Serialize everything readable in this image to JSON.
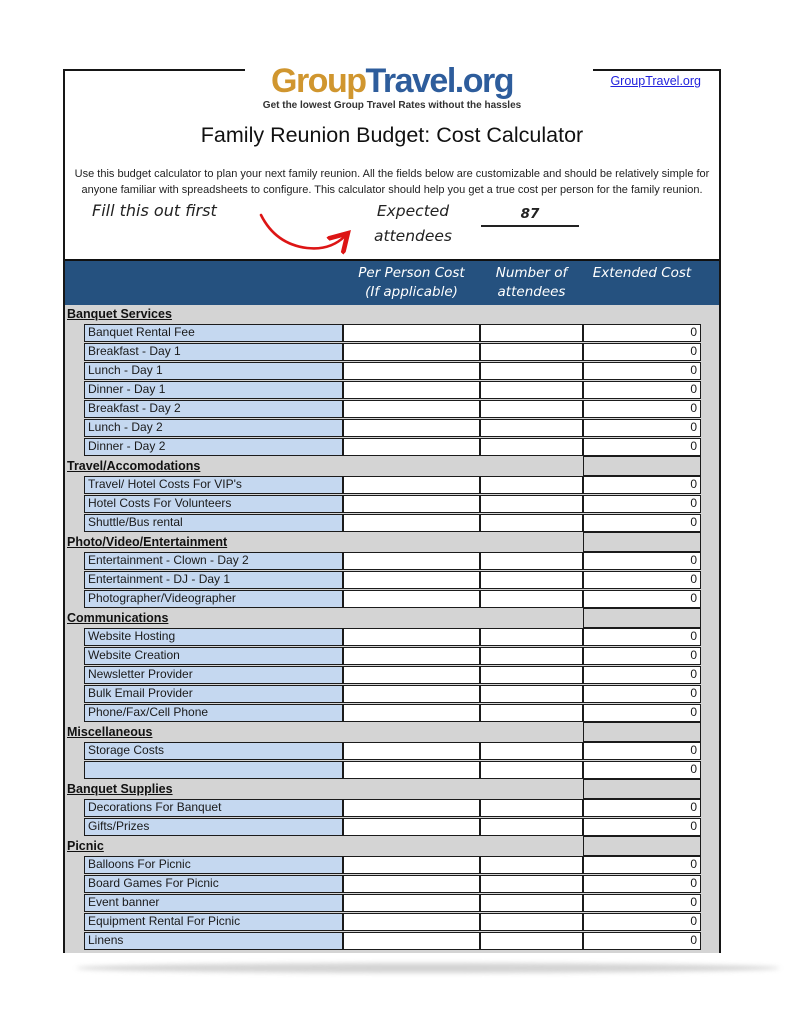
{
  "colors": {
    "logo_gold": "#D0962F",
    "logo_blue": "#2E5D9C",
    "link_blue": "#2222DD",
    "band_blue": "#25517F",
    "cell_blue": "#C5D8F0",
    "table_gray": "#D4D4D4",
    "arrow_red": "#DD1515"
  },
  "brand": {
    "logo_group": "Group",
    "logo_travel": "Travel.org",
    "tagline": "Get the lowest Group Travel Rates without the hassles",
    "link_label": "GroupTravel.org"
  },
  "header": {
    "title": "Family Reunion Budget: Cost Calculator",
    "description_line1": "Use this budget calculator to plan your next family reunion. All the fields below are customizable and should be relatively simple for",
    "description_line2": "anyone familiar with spreadsheets to configure. This calculator should help you get a true cost per person for the family reunion."
  },
  "annotation": {
    "note": "Fill this out first",
    "label_line1": "Expected",
    "label_line2": "attendees",
    "value": "87"
  },
  "table": {
    "columns": [
      {
        "line1": "Per Person Cost",
        "line2": "(If applicable)"
      },
      {
        "line1": "Number of",
        "line2": "attendees"
      },
      {
        "line1": "Extended Cost",
        "line2": ""
      }
    ],
    "sections": [
      {
        "name": "Banquet Services",
        "sum_box": false,
        "rows": [
          {
            "label": "Banquet Rental Fee",
            "per_person": "",
            "attendees": "",
            "extended": "0"
          },
          {
            "label": "Breakfast - Day 1",
            "per_person": "",
            "attendees": "",
            "extended": "0"
          },
          {
            "label": "Lunch - Day 1",
            "per_person": "",
            "attendees": "",
            "extended": "0"
          },
          {
            "label": "Dinner - Day 1",
            "per_person": "",
            "attendees": "",
            "extended": "0"
          },
          {
            "label": "Breakfast - Day 2",
            "per_person": "",
            "attendees": "",
            "extended": "0"
          },
          {
            "label": "Lunch - Day 2",
            "per_person": "",
            "attendees": "",
            "extended": "0"
          },
          {
            "label": "Dinner - Day 2",
            "per_person": "",
            "attendees": "",
            "extended": "0"
          }
        ]
      },
      {
        "name": "Travel/Accomodations",
        "sum_box": true,
        "rows": [
          {
            "label": "Travel/ Hotel Costs For VIP's",
            "per_person": "",
            "attendees": "",
            "extended": "0"
          },
          {
            "label": "Hotel Costs For Volunteers",
            "per_person": "",
            "attendees": "",
            "extended": "0"
          },
          {
            "label": "Shuttle/Bus rental",
            "per_person": "",
            "attendees": "",
            "extended": "0"
          }
        ]
      },
      {
        "name": "Photo/Video/Entertainment",
        "sum_box": true,
        "rows": [
          {
            "label": "Entertainment - Clown - Day 2",
            "per_person": "",
            "attendees": "",
            "extended": "0"
          },
          {
            "label": "Entertainment - DJ - Day 1",
            "per_person": "",
            "attendees": "",
            "extended": "0"
          },
          {
            "label": "Photographer/Videographer",
            "per_person": "",
            "attendees": "",
            "extended": "0"
          }
        ]
      },
      {
        "name": "Communications",
        "sum_box": true,
        "rows": [
          {
            "label": "Website Hosting",
            "per_person": "",
            "attendees": "",
            "extended": "0"
          },
          {
            "label": "Website Creation",
            "per_person": "",
            "attendees": "",
            "extended": "0"
          },
          {
            "label": "Newsletter Provider",
            "per_person": "",
            "attendees": "",
            "extended": "0"
          },
          {
            "label": "Bulk Email Provider",
            "per_person": "",
            "attendees": "",
            "extended": "0"
          },
          {
            "label": "Phone/Fax/Cell Phone",
            "per_person": "",
            "attendees": "",
            "extended": "0"
          }
        ]
      },
      {
        "name": "Miscellaneous",
        "sum_box": true,
        "rows": [
          {
            "label": "Storage Costs",
            "per_person": "",
            "attendees": "",
            "extended": "0"
          },
          {
            "label": "",
            "per_person": "",
            "attendees": "",
            "extended": "0"
          }
        ]
      },
      {
        "name": "Banquet Supplies",
        "sum_box": true,
        "rows": [
          {
            "label": "Decorations For Banquet",
            "per_person": "",
            "attendees": "",
            "extended": "0"
          },
          {
            "label": "Gifts/Prizes",
            "per_person": "",
            "attendees": "",
            "extended": "0"
          }
        ]
      },
      {
        "name": "Picnic",
        "sum_box": true,
        "rows": [
          {
            "label": "Balloons For Picnic",
            "per_person": "",
            "attendees": "",
            "extended": "0"
          },
          {
            "label": "Board Games For Picnic",
            "per_person": "",
            "attendees": "",
            "extended": "0"
          },
          {
            "label": "Event banner",
            "per_person": "",
            "attendees": "",
            "extended": "0"
          },
          {
            "label": "Equipment Rental For Picnic",
            "per_person": "",
            "attendees": "",
            "extended": "0"
          },
          {
            "label": "Linens",
            "per_person": "",
            "attendees": "",
            "extended": "0"
          }
        ]
      }
    ]
  }
}
